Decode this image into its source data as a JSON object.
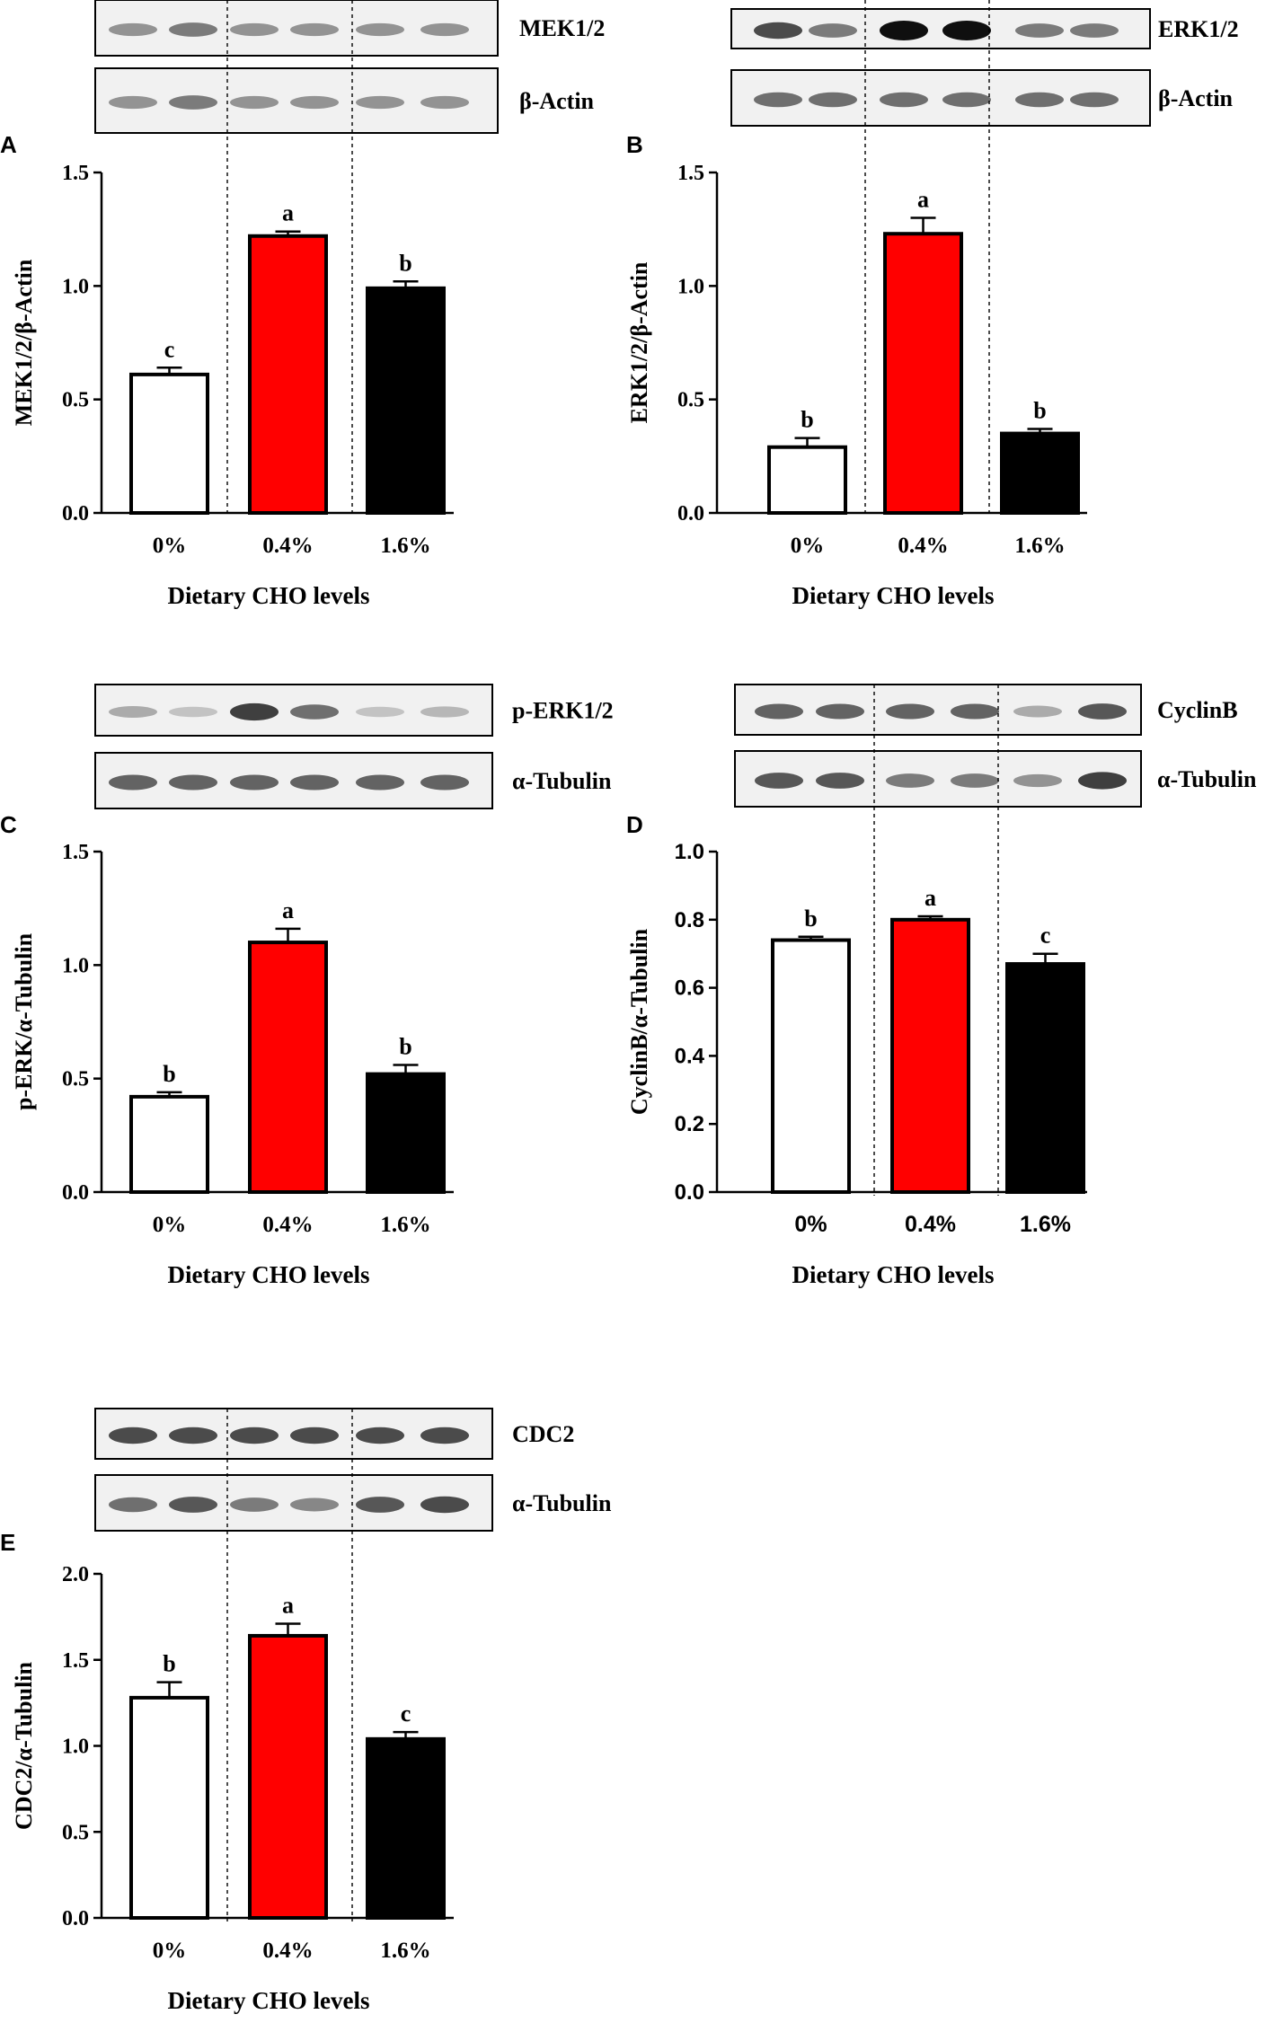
{
  "chart_data": [
    {
      "panel": "A",
      "type": "bar",
      "categories": [
        "0%",
        "0.4%",
        "1.6%"
      ],
      "values": [
        0.61,
        1.22,
        0.99
      ],
      "errors": [
        0.03,
        0.02,
        0.03
      ],
      "letters": [
        "c",
        "a",
        "b"
      ],
      "xlabel": "Dietary CHO levels",
      "ylabel": "MEK1/2/β-Actin",
      "ylim": [
        0,
        1.5
      ],
      "yticks": [
        "0.0",
        "0.5",
        "1.0",
        "1.5"
      ],
      "blots": [
        "MEK1/2",
        "β-Actin"
      ]
    },
    {
      "panel": "B",
      "type": "bar",
      "categories": [
        "0%",
        "0.4%",
        "1.6%"
      ],
      "values": [
        0.29,
        1.23,
        0.35
      ],
      "errors": [
        0.04,
        0.07,
        0.02
      ],
      "letters": [
        "b",
        "a",
        "b"
      ],
      "xlabel": "Dietary CHO levels",
      "ylabel": "ERK1/2/β-Actin",
      "ylim": [
        0,
        1.5
      ],
      "yticks": [
        "0.0",
        "0.5",
        "1.0",
        "1.5"
      ],
      "blots": [
        "ERK1/2",
        "β-Actin"
      ]
    },
    {
      "panel": "C",
      "type": "bar",
      "categories": [
        "0%",
        "0.4%",
        "1.6%"
      ],
      "values": [
        0.42,
        1.1,
        0.52
      ],
      "errors": [
        0.02,
        0.06,
        0.04
      ],
      "letters": [
        "b",
        "a",
        "b"
      ],
      "xlabel": "Dietary CHO levels",
      "ylabel": "p-ERK/α-Tubulin",
      "ylim": [
        0,
        1.5
      ],
      "yticks": [
        "0.0",
        "0.5",
        "1.0",
        "1.5"
      ],
      "blots": [
        "p-ERK1/2",
        "α-Tubulin"
      ]
    },
    {
      "panel": "D",
      "type": "bar",
      "categories": [
        "0%",
        "0.4%",
        "1.6%"
      ],
      "values": [
        0.74,
        0.8,
        0.67
      ],
      "errors": [
        0.01,
        0.01,
        0.03
      ],
      "letters": [
        "b",
        "a",
        "c"
      ],
      "xlabel": "Dietary CHO levels",
      "ylabel": "CyclinB/α-Tubulin",
      "ylim": [
        0,
        1.0
      ],
      "yticks": [
        "0.0",
        "0.2",
        "0.4",
        "0.6",
        "0.8",
        "1.0"
      ],
      "blots": [
        "CyclinB",
        "α-Tubulin"
      ]
    },
    {
      "panel": "E",
      "type": "bar",
      "categories": [
        "0%",
        "0.4%",
        "1.6%"
      ],
      "values": [
        1.28,
        1.64,
        1.04
      ],
      "errors": [
        0.09,
        0.07,
        0.04
      ],
      "letters": [
        "b",
        "a",
        "c"
      ],
      "xlabel": "Dietary CHO levels",
      "ylabel": "CDC2/α-Tubulin",
      "ylim": [
        0,
        2.0
      ],
      "yticks": [
        "0.0",
        "0.5",
        "1.0",
        "1.5",
        "2.0"
      ],
      "blots": [
        "CDC2",
        "α-Tubulin"
      ]
    }
  ],
  "colors": {
    "bar_0": "#ffffff",
    "bar_1": "#ff0000",
    "bar_2": "#000000",
    "axis": "#000000"
  }
}
